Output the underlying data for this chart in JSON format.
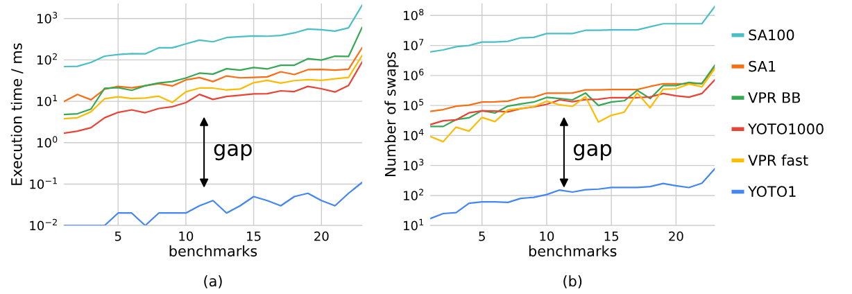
{
  "chart_data": [
    {
      "type": "line",
      "title": "(a)",
      "xlabel": "benchmarks",
      "ylabel": "Execution time / ms",
      "log": "y",
      "grid": true,
      "legend": false,
      "x": [
        1,
        2,
        3,
        4,
        5,
        6,
        7,
        8,
        9,
        10,
        11,
        12,
        13,
        14,
        15,
        16,
        17,
        18,
        19,
        20,
        21,
        22,
        23
      ],
      "xlim": [
        1,
        23
      ],
      "xticks": [
        5,
        10,
        15,
        20
      ],
      "ylim": [
        0.01,
        2300
      ],
      "yticks": [
        {
          "value": 0.01,
          "label": "10$^{−2}$"
        },
        {
          "value": 0.1,
          "label": "10$^{−1}$"
        },
        {
          "value": 1,
          "label": "10$^{0}$"
        },
        {
          "value": 10,
          "label": "10$^{1}$"
        },
        {
          "value": 100,
          "label": "10$^{2}$"
        },
        {
          "value": 1000,
          "label": "10$^{3}$"
        }
      ],
      "annotations": [
        "gap"
      ],
      "series": [
        {
          "color": "#4bbfc8",
          "values": [
            69,
            70,
            87,
            123,
            135,
            142,
            140,
            196,
            196,
            244,
            300,
            274,
            346,
            365,
            379,
            373,
            389,
            449,
            558,
            537,
            497,
            596,
            2090
          ]
        },
        {
          "color": "#fa6e11",
          "values": [
            9.9,
            14.6,
            10.9,
            19.6,
            22.9,
            21.2,
            23.8,
            26.7,
            23.5,
            32.9,
            37.4,
            30.0,
            40.9,
            36.9,
            37.9,
            38.9,
            51.7,
            44.3,
            58.1,
            58.9,
            56.6,
            59.6,
            196
          ]
        },
        {
          "color": "#34a853",
          "values": [
            4.8,
            5.0,
            6.5,
            20.6,
            21.4,
            18.4,
            23.8,
            27.8,
            30.0,
            36.5,
            47.9,
            45.4,
            61.2,
            56.6,
            65.3,
            60.4,
            74.3,
            74.3,
            107,
            99,
            123,
            121,
            612
          ]
        },
        {
          "color": "#ea4335",
          "values": [
            1.7,
            1.9,
            2.3,
            4.0,
            5.4,
            6.2,
            5.3,
            6.7,
            7.4,
            9.3,
            14.7,
            11.1,
            13.1,
            14.0,
            15.1,
            15.3,
            17.9,
            17.2,
            22.9,
            20.1,
            16.8,
            24.1,
            88.7
          ]
        },
        {
          "color": "#fbbc04",
          "values": [
            3.8,
            4.0,
            5.6,
            11.5,
            12.8,
            11.7,
            12.0,
            13.3,
            9.4,
            17.0,
            20.9,
            20.9,
            18.8,
            19.8,
            28.1,
            32.0,
            27.4,
            31.6,
            33.3,
            32.0,
            35.1,
            37.9,
            128
          ]
        },
        {
          "color": "#4285f4",
          "values": [
            0.01,
            0.01,
            0.01,
            0.01,
            0.02,
            0.02,
            0.01,
            0.02,
            0.02,
            0.02,
            0.03,
            0.04,
            0.02,
            0.03,
            0.05,
            0.04,
            0.03,
            0.05,
            0.06,
            0.04,
            0.03,
            0.06,
            0.11
          ]
        }
      ]
    },
    {
      "type": "line",
      "title": "(b)",
      "xlabel": "benchmarks",
      "ylabel": "Number of swaps",
      "log": "y",
      "grid": true,
      "legend": "right",
      "x": [
        1,
        2,
        3,
        4,
        5,
        6,
        7,
        8,
        9,
        10,
        11,
        12,
        13,
        14,
        15,
        16,
        17,
        18,
        19,
        20,
        21,
        22,
        23
      ],
      "xlim": [
        1,
        23
      ],
      "xticks": [
        5,
        10,
        15,
        20
      ],
      "ylim": [
        10,
        250000000
      ],
      "yticks": [
        {
          "value": 10,
          "label": "10$^{1}$"
        },
        {
          "value": 100,
          "label": "10$^{2}$"
        },
        {
          "value": 1000,
          "label": "10$^{3}$"
        },
        {
          "value": 10000,
          "label": "10$^{4}$"
        },
        {
          "value": 100000,
          "label": "10$^{5}$"
        },
        {
          "value": 1000000,
          "label": "10$^{6}$"
        },
        {
          "value": 10000000,
          "label": "10$^{7}$"
        },
        {
          "value": 100000000,
          "label": "10$^{8}$"
        }
      ],
      "annotations": [
        "gap"
      ],
      "series": [
        {
          "name": "SA100",
          "color": "#4bbfc8",
          "values": [
            6100000.0,
            7100000.0,
            9100000.0,
            10000000.0,
            13000000.0,
            13000000.0,
            13700000.0,
            18000000.0,
            18700000.0,
            25000000.0,
            25000000.0,
            25000000.0,
            32000000.0,
            32000000.0,
            33000000.0,
            33000000.0,
            33000000.0,
            42000000.0,
            53000000.0,
            53000000.0,
            53000000.0,
            53000000.0,
            200000000.0
          ]
        },
        {
          "name": "SA1",
          "color": "#fa6e11",
          "values": [
            64000.0,
            73000.0,
            95000.0,
            103000.0,
            130000.0,
            132000.0,
            139000.0,
            183000.0,
            189000.0,
            258000.0,
            258000.0,
            260000.0,
            330000.0,
            330000.0,
            340000.0,
            340000.0,
            340000.0,
            430000.0,
            530000.0,
            530000.0,
            530000.0,
            550000.0,
            1800000.0
          ]
        },
        {
          "name": "VPR BB",
          "color": "#34a853",
          "values": [
            20000.0,
            20000.0,
            34000.0,
            39000.0,
            67000.0,
            56000.0,
            95000.0,
            113000.0,
            130000.0,
            186000.0,
            170000.0,
            154000.0,
            260000.0,
            100000.0,
            130000.0,
            144000.0,
            320000.0,
            170000.0,
            460000.0,
            460000.0,
            590000.0,
            530000.0,
            2200000.0
          ]
        },
        {
          "name": "YOTO1000",
          "color": "#ea4335",
          "values": [
            23000.0,
            31000.0,
            33000.0,
            57000.0,
            66000.0,
            65000.0,
            61000.0,
            79000.0,
            90000.0,
            109000.0,
            154000.0,
            134000.0,
            157000.0,
            162000.0,
            183000.0,
            183000.0,
            183000.0,
            193000.0,
            250000.0,
            210000.0,
            190000.0,
            250000.0,
            720000.0
          ]
        },
        {
          "name": "VPR fast",
          "color": "#fbbc04",
          "values": [
            9300.0,
            6200.0,
            19000.0,
            14000.0,
            40000.0,
            29000.0,
            71000.0,
            80000.0,
            92000.0,
            139000.0,
            105000.0,
            93000.0,
            196000.0,
            28000.0,
            47000.0,
            60000.0,
            260000.0,
            84000.0,
            350000.0,
            360000.0,
            520000.0,
            420000.0,
            1700000.0
          ]
        },
        {
          "name": "YOTO1",
          "color": "#4285f4",
          "values": [
            17,
            25,
            27,
            55,
            61,
            61,
            59,
            80,
            87,
            107,
            152,
            130,
            155,
            163,
            184,
            184,
            184,
            197,
            252,
            212,
            184,
            256,
            780
          ]
        }
      ]
    }
  ]
}
